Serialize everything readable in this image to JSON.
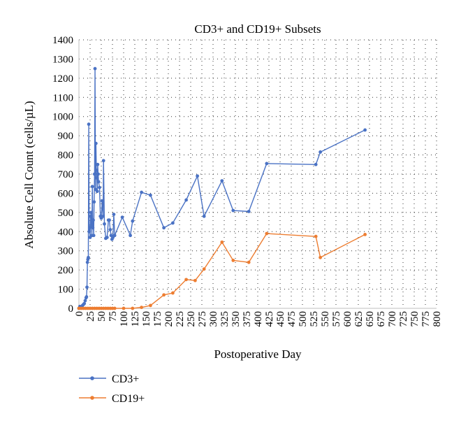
{
  "chart_data": {
    "type": "line",
    "title": "CD3+ and CD19+ Subsets",
    "xlabel": "Postoperative Day",
    "ylabel": "Absolute Cell Count (cells/µL)",
    "xlim": [
      0,
      800
    ],
    "ylim": [
      0,
      1400
    ],
    "x_ticks": [
      "0",
      "25",
      "50",
      "75",
      "100",
      "125",
      "150",
      "175",
      "200",
      "225",
      "250",
      "275",
      "300",
      "325",
      "350",
      "375",
      "400",
      "425",
      "450",
      "475",
      "500",
      "525",
      "550",
      "575",
      "600",
      "625",
      "650",
      "675",
      "700",
      "725",
      "750",
      "775",
      "800"
    ],
    "y_ticks": [
      "0",
      "100",
      "200",
      "300",
      "400",
      "500",
      "600",
      "700",
      "800",
      "900",
      "1000",
      "1100",
      "1200",
      "1300",
      "1400"
    ],
    "grid": "dotted",
    "legend_position": "bottom-left",
    "series": [
      {
        "name": "CD3+",
        "color": "#4a72c4",
        "points": [
          [
            0,
            0
          ],
          [
            2,
            10
          ],
          [
            5,
            5
          ],
          [
            8,
            15
          ],
          [
            10,
            20
          ],
          [
            12,
            25
          ],
          [
            14,
            40
          ],
          [
            16,
            55
          ],
          [
            17,
            60
          ],
          [
            18,
            110
          ],
          [
            19,
            240
          ],
          [
            20,
            255
          ],
          [
            21,
            265
          ],
          [
            22,
            960
          ],
          [
            23,
            400
          ],
          [
            24,
            420
          ],
          [
            25,
            370
          ],
          [
            26,
            480
          ],
          [
            27,
            500
          ],
          [
            28,
            430
          ],
          [
            29,
            380
          ],
          [
            30,
            635
          ],
          [
            31,
            420
          ],
          [
            32,
            460
          ],
          [
            33,
            380
          ],
          [
            34,
            555
          ],
          [
            35,
            700
          ],
          [
            36,
            1250
          ],
          [
            37,
            620
          ],
          [
            38,
            860
          ],
          [
            39,
            720
          ],
          [
            40,
            680
          ],
          [
            41,
            610
          ],
          [
            42,
            750
          ],
          [
            43,
            700
          ],
          [
            44,
            660
          ],
          [
            46,
            630
          ],
          [
            48,
            480
          ],
          [
            50,
            470
          ],
          [
            52,
            560
          ],
          [
            54,
            480
          ],
          [
            55,
            770
          ],
          [
            57,
            440
          ],
          [
            60,
            365
          ],
          [
            63,
            370
          ],
          [
            66,
            460
          ],
          [
            68,
            460
          ],
          [
            70,
            410
          ],
          [
            72,
            380
          ],
          [
            74,
            360
          ],
          [
            76,
            370
          ],
          [
            78,
            490
          ],
          [
            80,
            380
          ],
          [
            97,
            475
          ],
          [
            115,
            380
          ],
          [
            120,
            455
          ],
          [
            140,
            605
          ],
          [
            160,
            590
          ],
          [
            190,
            420
          ],
          [
            210,
            445
          ],
          [
            240,
            565
          ],
          [
            265,
            690
          ],
          [
            280,
            480
          ],
          [
            320,
            665
          ],
          [
            345,
            510
          ],
          [
            380,
            505
          ],
          [
            420,
            755
          ],
          [
            530,
            750
          ],
          [
            540,
            815
          ],
          [
            640,
            930
          ]
        ]
      },
      {
        "name": "CD19+",
        "color": "#ed7d31",
        "points": [
          [
            0,
            0
          ],
          [
            5,
            0
          ],
          [
            10,
            0
          ],
          [
            15,
            0
          ],
          [
            20,
            0
          ],
          [
            25,
            0
          ],
          [
            30,
            0
          ],
          [
            35,
            0
          ],
          [
            40,
            0
          ],
          [
            45,
            0
          ],
          [
            50,
            0
          ],
          [
            55,
            0
          ],
          [
            60,
            0
          ],
          [
            65,
            0
          ],
          [
            70,
            0
          ],
          [
            75,
            0
          ],
          [
            80,
            0
          ],
          [
            100,
            0
          ],
          [
            120,
            0
          ],
          [
            140,
            5
          ],
          [
            160,
            15
          ],
          [
            190,
            70
          ],
          [
            210,
            80
          ],
          [
            240,
            150
          ],
          [
            260,
            145
          ],
          [
            280,
            205
          ],
          [
            320,
            345
          ],
          [
            345,
            250
          ],
          [
            380,
            240
          ],
          [
            420,
            390
          ],
          [
            530,
            375
          ],
          [
            540,
            265
          ],
          [
            640,
            385
          ]
        ]
      }
    ]
  }
}
